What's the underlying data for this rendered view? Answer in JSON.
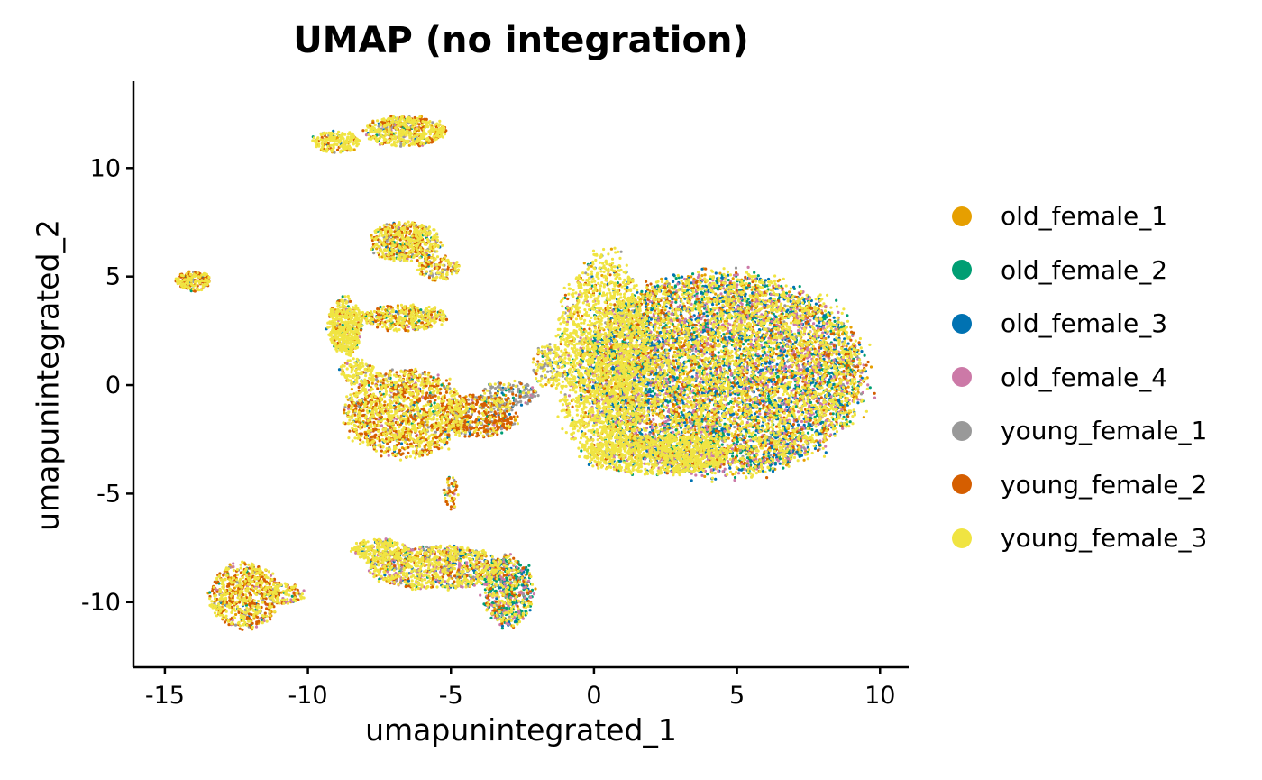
{
  "chart_data": {
    "type": "scatter",
    "title": "UMAP (no integration)",
    "xlabel": "umapunintegrated_1",
    "ylabel": "umapunintegrated_2",
    "xlim": [
      -16.1,
      11.0
    ],
    "ylim": [
      -13.0,
      14.0
    ],
    "xticks": [
      -15,
      -10,
      -5,
      0,
      5,
      10
    ],
    "xtick_labels": [
      "-15",
      "-10",
      "-5",
      "0",
      "5",
      "10"
    ],
    "yticks": [
      -10,
      -5,
      0,
      5,
      10
    ],
    "ytick_labels": [
      "-10",
      "-5",
      "0",
      "5",
      "10"
    ],
    "grid": false,
    "legend_position": "right",
    "series": [
      {
        "name": "old_female_1",
        "color": "#E69F00"
      },
      {
        "name": "old_female_2",
        "color": "#009E73"
      },
      {
        "name": "old_female_3",
        "color": "#0072B2"
      },
      {
        "name": "old_female_4",
        "color": "#CC79A7"
      },
      {
        "name": "young_female_1",
        "color": "#999999"
      },
      {
        "name": "young_female_2",
        "color": "#D55E00"
      },
      {
        "name": "young_female_3",
        "color": "#F0E442"
      }
    ],
    "clusters": [
      {
        "cx": 4.5,
        "cy": 0.5,
        "rx": 4.9,
        "ry": 4.6,
        "n": 9000,
        "mix": [
          0.14,
          0.12,
          0.16,
          0.14,
          0.02,
          0.08,
          0.34
        ]
      },
      {
        "cx": 0.3,
        "cy": 1.2,
        "rx": 1.6,
        "ry": 4.8,
        "n": 1800,
        "mix": [
          0.05,
          0.05,
          0.03,
          0.03,
          0.02,
          0.04,
          0.78
        ]
      },
      {
        "cx": 2.2,
        "cy": -3.2,
        "rx": 2.5,
        "ry": 0.9,
        "n": 900,
        "mix": [
          0.04,
          0.03,
          0.03,
          0.05,
          0.02,
          0.03,
          0.8
        ]
      },
      {
        "cx": -6.6,
        "cy": -1.3,
        "rx": 2.1,
        "ry": 2.0,
        "n": 1500,
        "mix": [
          0.1,
          0.04,
          0.02,
          0.04,
          0.05,
          0.3,
          0.45
        ]
      },
      {
        "cx": -4.0,
        "cy": -1.4,
        "rx": 1.3,
        "ry": 1.0,
        "n": 500,
        "mix": [
          0.08,
          0.04,
          0.02,
          0.03,
          0.2,
          0.45,
          0.18
        ]
      },
      {
        "cx": -3.0,
        "cy": -0.4,
        "rx": 1.0,
        "ry": 0.6,
        "n": 150,
        "mix": [
          0.05,
          0.05,
          0.05,
          0.05,
          0.55,
          0.1,
          0.15
        ]
      },
      {
        "cx": -1.6,
        "cy": 0.9,
        "rx": 0.6,
        "ry": 1.0,
        "n": 140,
        "mix": [
          0.04,
          0.04,
          0.02,
          0.02,
          0.25,
          0.03,
          0.6
        ]
      },
      {
        "cx": -5.5,
        "cy": -8.4,
        "rx": 2.4,
        "ry": 1.0,
        "n": 1100,
        "mix": [
          0.1,
          0.08,
          0.08,
          0.14,
          0.05,
          0.1,
          0.45
        ]
      },
      {
        "cx": -3.0,
        "cy": -9.5,
        "rx": 0.9,
        "ry": 1.6,
        "n": 600,
        "mix": [
          0.1,
          0.3,
          0.08,
          0.15,
          0.04,
          0.1,
          0.23
        ]
      },
      {
        "cx": -7.5,
        "cy": -7.6,
        "rx": 1.0,
        "ry": 0.5,
        "n": 250,
        "mix": [
          0.08,
          0.04,
          0.02,
          0.04,
          0.02,
          0.05,
          0.75
        ]
      },
      {
        "cx": -12.2,
        "cy": -9.7,
        "rx": 1.2,
        "ry": 1.5,
        "n": 700,
        "mix": [
          0.12,
          0.04,
          0.02,
          0.05,
          0.08,
          0.3,
          0.39
        ]
      },
      {
        "cx": -10.8,
        "cy": -9.6,
        "rx": 0.7,
        "ry": 0.5,
        "n": 120,
        "mix": [
          0.08,
          0.05,
          0.05,
          0.1,
          0.05,
          0.17,
          0.5
        ]
      },
      {
        "cx": -8.7,
        "cy": 2.7,
        "rx": 0.6,
        "ry": 1.3,
        "n": 500,
        "mix": [
          0.05,
          0.05,
          0.02,
          0.03,
          0.03,
          0.07,
          0.75
        ]
      },
      {
        "cx": -6.6,
        "cy": 3.1,
        "rx": 1.5,
        "ry": 0.6,
        "n": 400,
        "mix": [
          0.12,
          0.08,
          0.02,
          0.04,
          0.04,
          0.2,
          0.5
        ]
      },
      {
        "cx": -6.6,
        "cy": 6.6,
        "rx": 1.2,
        "ry": 0.9,
        "n": 550,
        "mix": [
          0.1,
          0.04,
          0.02,
          0.04,
          0.08,
          0.22,
          0.5
        ]
      },
      {
        "cx": -5.4,
        "cy": 5.4,
        "rx": 0.7,
        "ry": 0.6,
        "n": 150,
        "mix": [
          0.08,
          0.04,
          0.02,
          0.04,
          0.15,
          0.27,
          0.4
        ]
      },
      {
        "cx": -6.6,
        "cy": 11.7,
        "rx": 1.4,
        "ry": 0.7,
        "n": 550,
        "mix": [
          0.1,
          0.04,
          0.02,
          0.05,
          0.05,
          0.18,
          0.56
        ]
      },
      {
        "cx": -9.0,
        "cy": 11.2,
        "rx": 0.9,
        "ry": 0.5,
        "n": 200,
        "mix": [
          0.06,
          0.02,
          0.02,
          0.03,
          0.04,
          0.1,
          0.73
        ]
      },
      {
        "cx": -14.0,
        "cy": 4.8,
        "rx": 0.6,
        "ry": 0.45,
        "n": 200,
        "mix": [
          0.1,
          0.05,
          0.02,
          0.03,
          0.05,
          0.3,
          0.45
        ]
      },
      {
        "cx": -5.0,
        "cy": -5.0,
        "rx": 0.25,
        "ry": 0.8,
        "n": 50,
        "mix": [
          0.15,
          0.1,
          0.05,
          0.05,
          0.1,
          0.35,
          0.2
        ]
      },
      {
        "cx": -8.3,
        "cy": 0.6,
        "rx": 0.6,
        "ry": 0.6,
        "n": 120,
        "mix": [
          0.05,
          0.05,
          0.03,
          0.03,
          0.05,
          0.04,
          0.75
        ]
      }
    ]
  }
}
